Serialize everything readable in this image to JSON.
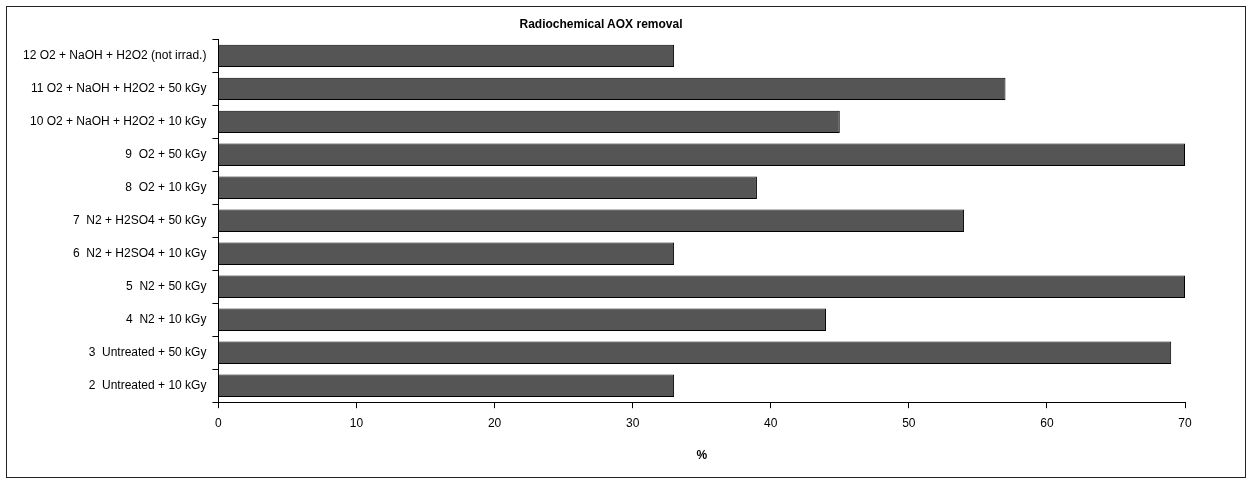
{
  "chart_data": {
    "type": "bar",
    "orientation": "horizontal",
    "title": "Radiochemical AOX removal",
    "xlabel": "%",
    "categories": [
      "12 O2 + NaOH + H2O2 (not irrad.)",
      "11 O2 + NaOH + H2O2 + 50 kGy",
      "10 O2 + NaOH + H2O2 + 10 kGy",
      "9  O2 + 50 kGy",
      "8  O2 + 10 kGy",
      "7  N2 + H2SO4 + 50 kGy",
      "6  N2 + H2SO4 + 10 kGy",
      "5  N2 + 50 kGy",
      "4  N2 + 10 kGy",
      "3  Untreated + 50 kGy",
      "2  Untreated + 10 kGy"
    ],
    "values": [
      33,
      57,
      45,
      70,
      39,
      54,
      33,
      70,
      44,
      69,
      33
    ],
    "color": "#555555",
    "xlim": [
      0,
      70
    ],
    "xticks": [
      0,
      10,
      20,
      30,
      40,
      50,
      60,
      70
    ],
    "grid": false,
    "legend": false
  }
}
